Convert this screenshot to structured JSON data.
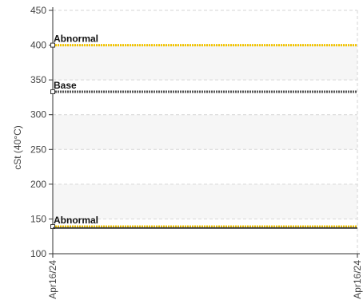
{
  "chart_data": {
    "type": "line",
    "title": "",
    "xlabel": "",
    "ylabel": "cSt (40°C)",
    "ylim": [
      100,
      450
    ],
    "yticks": [
      100,
      150,
      200,
      250,
      300,
      350,
      400,
      450
    ],
    "x_tick_labels": [
      "Apr16/24",
      "Apr16/24"
    ],
    "grid": true,
    "reference_lines": [
      {
        "label": "Abnormal",
        "value": 400,
        "color": "#f2c400",
        "style": "dashed"
      },
      {
        "label": "Base",
        "value": 333,
        "color": "#555555",
        "style": "dashed"
      },
      {
        "label": "Abnormal",
        "value": 139,
        "color": "#f2c400",
        "style": "dashed"
      }
    ],
    "series": [
      {
        "x": [
          "Apr16/24",
          "Apr16/24"
        ],
        "values": [
          137,
          137
        ],
        "color": "#333333"
      }
    ],
    "band_colors": [
      "#f6f6f6",
      "#ffffff"
    ]
  }
}
